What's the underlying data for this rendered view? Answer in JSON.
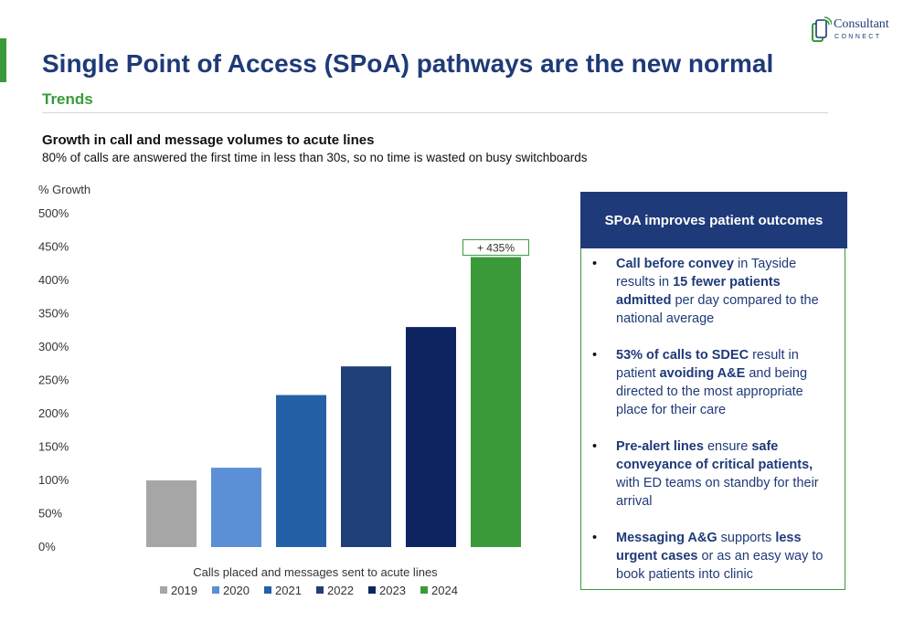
{
  "header": {
    "title": "Single Point of Access (SPoA) pathways are the new normal",
    "subtitle": "Trends"
  },
  "logo": {
    "line1": "Consultant",
    "line2": "CONNECT"
  },
  "chart_section": {
    "title": "Growth in call and message volumes to acute lines",
    "subtitle": "80% of calls are answered the first time in less than 30s, so no time is wasted on busy switchboards"
  },
  "chart_data": {
    "type": "bar",
    "ylabel": "% Growth",
    "xlabel": "Calls placed and messages sent to acute lines",
    "ylim": [
      0,
      500
    ],
    "yticks": [
      0,
      50,
      100,
      150,
      200,
      250,
      300,
      350,
      400,
      450,
      500
    ],
    "ytick_labels": [
      "0%",
      "50%",
      "100%",
      "150%",
      "200%",
      "250%",
      "300%",
      "350%",
      "400%",
      "450%",
      "500%"
    ],
    "grid": false,
    "legend_position": "bottom",
    "series": [
      {
        "name": "2019",
        "value": 100,
        "color": "#a6a6a6"
      },
      {
        "name": "2020",
        "value": 119,
        "color": "#5b8fd6"
      },
      {
        "name": "2021",
        "value": 228,
        "color": "#2460a8"
      },
      {
        "name": "2022",
        "value": 271,
        "color": "#1f3f78"
      },
      {
        "name": "2023",
        "value": 330,
        "color": "#0d2461"
      },
      {
        "name": "2024",
        "value": 435,
        "color": "#3a9a3a"
      }
    ],
    "annotation": {
      "series": "2024",
      "text": "+ 435%"
    }
  },
  "panel": {
    "title": "SPoA improves patient outcomes",
    "items": [
      [
        {
          "t": "Call before convey",
          "b": true
        },
        {
          "t": " in Tayside results in ",
          "b": false
        },
        {
          "t": "15 fewer patients admitted",
          "b": true
        },
        {
          "t": " per day compared to the national average",
          "b": false
        }
      ],
      [
        {
          "t": "53% of calls to SDEC",
          "b": true
        },
        {
          "t": " result in patient ",
          "b": false
        },
        {
          "t": "avoiding A&E",
          "b": true
        },
        {
          "t": " and being directed to the most appropriate place for their care",
          "b": false
        }
      ],
      [
        {
          "t": "Pre-alert lines",
          "b": true
        },
        {
          "t": " ensure ",
          "b": false
        },
        {
          "t": "safe conveyance of critical patients,",
          "b": true
        },
        {
          "t": " with ED teams on standby for their arrival",
          "b": false
        }
      ],
      [
        {
          "t": "Messaging A&G",
          "b": true
        },
        {
          "t": " supports ",
          "b": false
        },
        {
          "t": "less urgent cases",
          "b": true
        },
        {
          "t": " or as an easy way to book patients into clinic",
          "b": false
        }
      ]
    ]
  }
}
